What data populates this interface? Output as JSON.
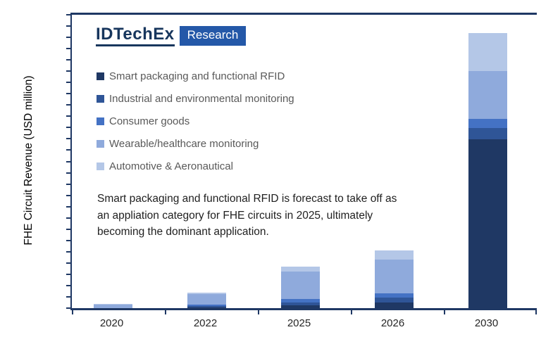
{
  "logo": {
    "brand": "IDTechEx",
    "suffix": "Research",
    "brand_color": "#17365d",
    "box_color": "#2458a8"
  },
  "annotation": "Smart packaging and functional RFID is forecast to take off as an appliation category for FHE circuits in 2025, ultimately becoming the dominant application.",
  "chart_data": {
    "type": "bar",
    "stacked": true,
    "title": "",
    "xlabel": "",
    "ylabel": "FHE Circuit Revenue (USD million)",
    "categories": [
      "2020",
      "2022",
      "2025",
      "2026",
      "2030"
    ],
    "series": [
      {
        "name": "Smart packaging and functional RFID",
        "color": "#1F3864",
        "values": [
          0,
          0.7,
          2.9,
          5.7,
          172.6
        ]
      },
      {
        "name": "Industrial and environmental monitoring",
        "color": "#2F5597",
        "values": [
          0,
          1.4,
          2.9,
          5.0,
          11.5
        ]
      },
      {
        "name": "Consumer goods",
        "color": "#4472C4",
        "values": [
          0,
          1.4,
          3.6,
          4.3,
          9.3
        ]
      },
      {
        "name": "Wearable/healthcare monitoring",
        "color": "#8FAADC",
        "values": [
          3.6,
          10.7,
          27.9,
          34.4,
          49.4
        ]
      },
      {
        "name": "Automotive & Aeronautical",
        "color": "#B4C7E7",
        "values": [
          0.7,
          1.4,
          5.0,
          9.3,
          38.7
        ]
      }
    ],
    "ylim": [
      0,
      300
    ],
    "y_axis_tick_labels": "none",
    "y_tick_count": 26,
    "grid": "off",
    "legend_position": "upper-left-inside",
    "axis_color": "#1F3864"
  }
}
